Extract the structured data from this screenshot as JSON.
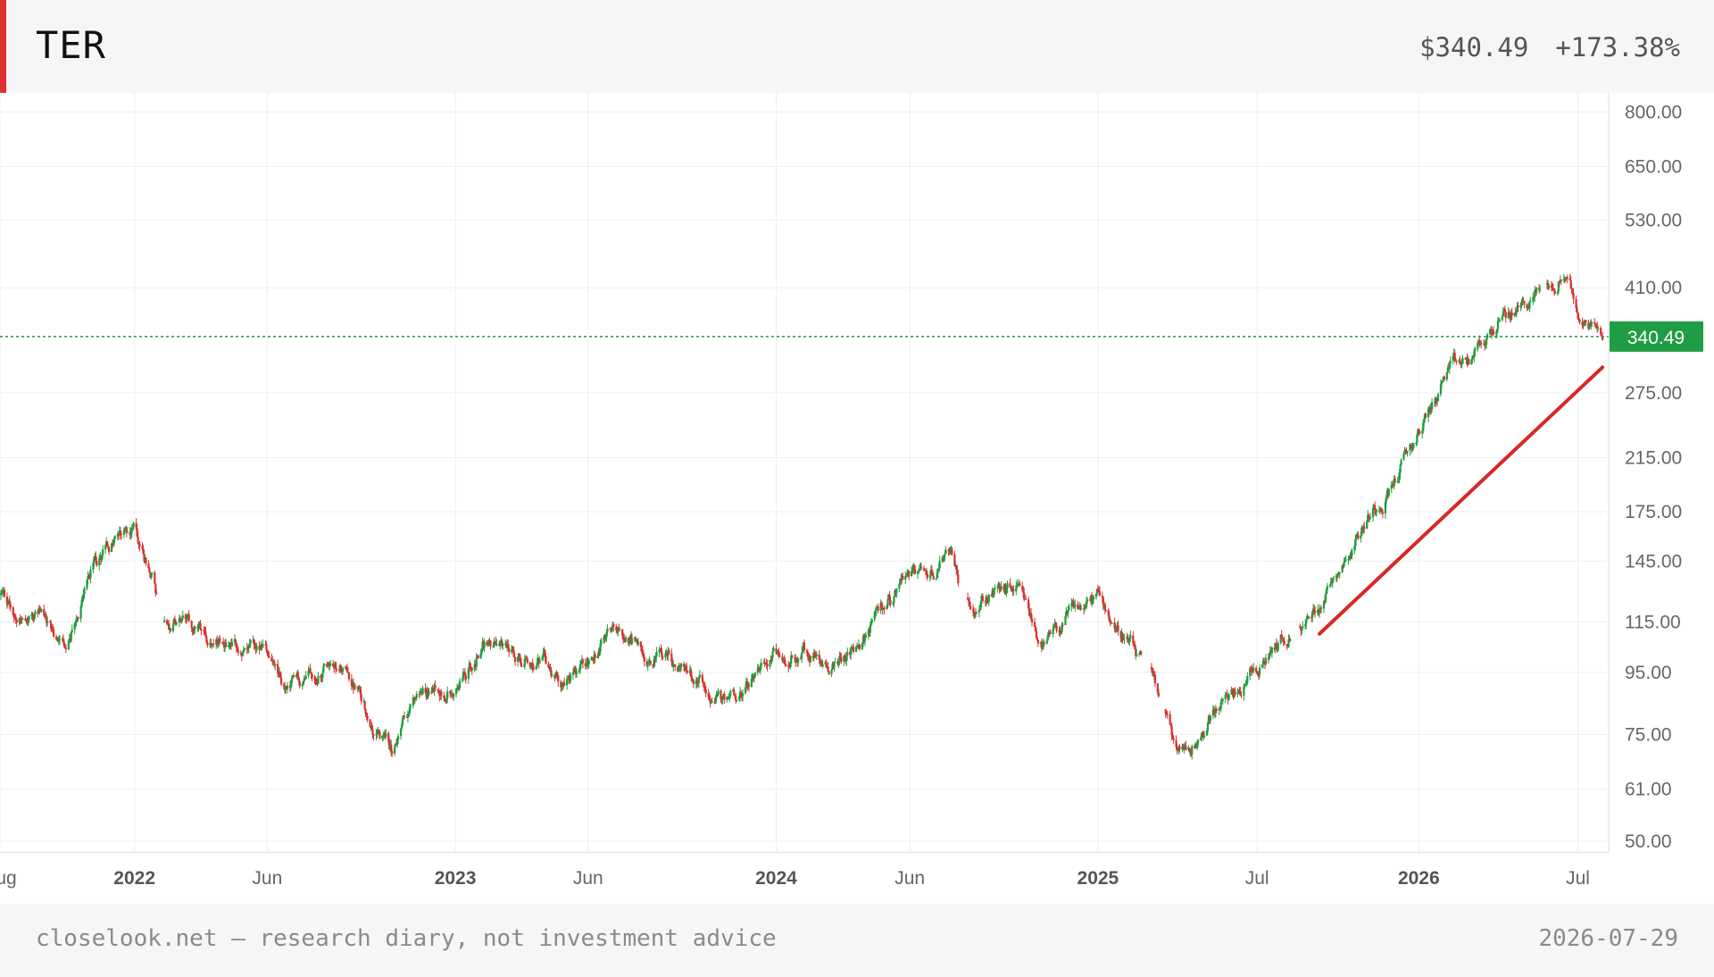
{
  "header": {
    "ticker": "TER",
    "price": "$340.49",
    "change": "+173.38%"
  },
  "footer": {
    "note": "closelook.net — research diary, not investment advice",
    "date": "2026-07-29"
  },
  "colors": {
    "up": "#1b9e3e",
    "down": "#d93030",
    "accent": "#e03131",
    "trend": "#d62828",
    "last_price_bg": "#1f9d45"
  },
  "chart_data": {
    "type": "candlestick",
    "scale": "log",
    "ylim": [
      48,
      860
    ],
    "xlim": [
      "2021-08-01",
      "2026-08-05"
    ],
    "grid": true,
    "y_ticks": [
      {
        "value": 800,
        "label": "800.00"
      },
      {
        "value": 650,
        "label": "650.00"
      },
      {
        "value": 530,
        "label": "530.00"
      },
      {
        "value": 410,
        "label": "410.00"
      },
      {
        "value": 275,
        "label": "275.00"
      },
      {
        "value": 215,
        "label": "215.00"
      },
      {
        "value": 175,
        "label": "175.00"
      },
      {
        "value": 145,
        "label": "145.00"
      },
      {
        "value": 115,
        "label": "115.00"
      },
      {
        "value": 95,
        "label": "95.00"
      },
      {
        "value": 75,
        "label": "75.00"
      },
      {
        "value": 61,
        "label": "61.00"
      },
      {
        "value": 50,
        "label": "50.00"
      }
    ],
    "x_ticks": [
      {
        "date": "2021-08-01",
        "label": "Aug",
        "bold": false
      },
      {
        "date": "2022-01-01",
        "label": "2022",
        "bold": true
      },
      {
        "date": "2022-06-01",
        "label": "Jun",
        "bold": false
      },
      {
        "date": "2023-01-01",
        "label": "2023",
        "bold": true
      },
      {
        "date": "2023-06-01",
        "label": "Jun",
        "bold": false
      },
      {
        "date": "2024-01-01",
        "label": "2024",
        "bold": true
      },
      {
        "date": "2024-06-01",
        "label": "Jun",
        "bold": false
      },
      {
        "date": "2025-01-01",
        "label": "2025",
        "bold": true
      },
      {
        "date": "2025-07-01",
        "label": "Jul",
        "bold": false
      },
      {
        "date": "2026-01-01",
        "label": "2026",
        "bold": true
      },
      {
        "date": "2026-07-01",
        "label": "Jul",
        "bold": false
      }
    ],
    "last_price": {
      "value": 340.49,
      "label": "340.49"
    },
    "trendline": {
      "start": {
        "date": "2025-09-10",
        "value": 110
      },
      "end": {
        "date": "2026-07-29",
        "value": 303
      }
    },
    "price_path": [
      [
        "2021-08-01",
        128
      ],
      [
        "2021-08-20",
        117
      ],
      [
        "2021-09-10",
        121
      ],
      [
        "2021-10-05",
        106
      ],
      [
        "2021-10-25",
        114
      ],
      [
        "2021-11-10",
        142
      ],
      [
        "2021-12-01",
        152
      ],
      [
        "2021-12-20",
        162
      ],
      [
        "2022-01-01",
        165
      ],
      [
        "2022-01-20",
        140
      ],
      [
        "2022-02-01",
        115
      ],
      [
        "2022-03-01",
        114
      ],
      [
        "2022-04-01",
        110
      ],
      [
        "2022-05-01",
        104
      ],
      [
        "2022-06-01",
        100
      ],
      [
        "2022-06-25",
        87
      ],
      [
        "2022-07-20",
        97
      ],
      [
        "2022-08-15",
        101
      ],
      [
        "2022-09-10",
        88
      ],
      [
        "2022-10-05",
        76
      ],
      [
        "2022-10-20",
        71
      ],
      [
        "2022-11-15",
        85
      ],
      [
        "2022-12-10",
        92
      ],
      [
        "2023-01-01",
        88
      ],
      [
        "2023-02-01",
        106
      ],
      [
        "2023-03-01",
        104
      ],
      [
        "2023-04-01",
        100
      ],
      [
        "2023-05-01",
        92
      ],
      [
        "2023-06-01",
        98
      ],
      [
        "2023-07-01",
        113
      ],
      [
        "2023-08-01",
        103
      ],
      [
        "2023-09-01",
        101
      ],
      [
        "2023-10-01",
        94
      ],
      [
        "2023-11-01",
        85
      ],
      [
        "2023-12-01",
        91
      ],
      [
        "2024-01-01",
        101
      ],
      [
        "2024-02-01",
        103
      ],
      [
        "2024-03-01",
        98
      ],
      [
        "2024-04-01",
        104
      ],
      [
        "2024-05-15",
        128
      ],
      [
        "2024-06-15",
        140
      ],
      [
        "2024-07-15",
        148
      ],
      [
        "2024-08-01",
        125
      ],
      [
        "2024-09-01",
        128
      ],
      [
        "2024-10-01",
        129
      ],
      [
        "2024-11-01",
        104
      ],
      [
        "2024-12-01",
        118
      ],
      [
        "2025-01-01",
        126
      ],
      [
        "2025-02-01",
        108
      ],
      [
        "2025-03-01",
        93
      ],
      [
        "2025-04-01",
        69
      ],
      [
        "2025-05-01",
        77
      ],
      [
        "2025-06-01",
        87
      ],
      [
        "2025-07-01",
        96
      ],
      [
        "2025-08-01",
        110
      ],
      [
        "2025-09-01",
        117
      ],
      [
        "2025-10-01",
        142
      ],
      [
        "2025-11-01",
        169
      ],
      [
        "2025-12-01",
        194
      ],
      [
        "2026-01-01",
        235
      ],
      [
        "2026-02-01",
        295
      ],
      [
        "2026-03-01",
        310
      ],
      [
        "2026-04-01",
        358
      ],
      [
        "2026-05-01",
        385
      ],
      [
        "2026-06-01",
        420
      ],
      [
        "2026-06-15",
        450
      ],
      [
        "2026-07-05",
        368
      ],
      [
        "2026-07-29",
        340.49
      ]
    ],
    "gaps": [
      [
        "2022-01-27",
        "2022-02-03"
      ],
      [
        "2024-07-28",
        "2024-08-05"
      ],
      [
        "2025-02-20",
        "2025-02-28"
      ],
      [
        "2025-03-12",
        "2025-03-18"
      ],
      [
        "2025-08-10",
        "2025-08-18"
      ],
      [
        "2026-05-20",
        "2026-05-26"
      ]
    ]
  }
}
